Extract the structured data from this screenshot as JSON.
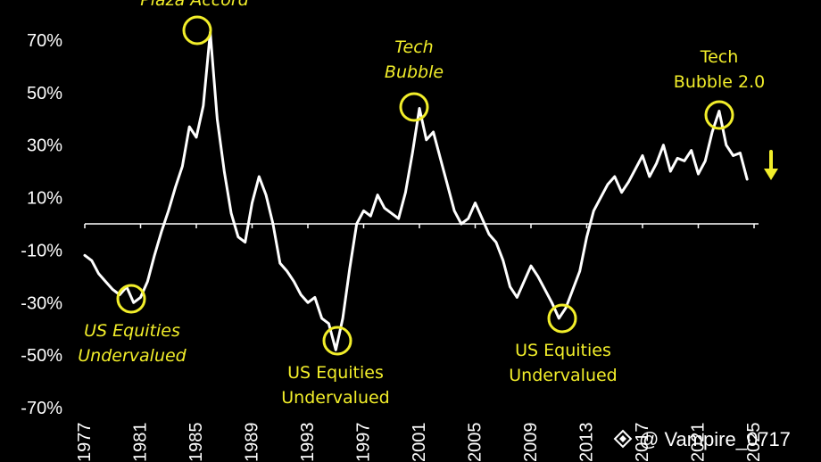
{
  "chart_data": {
    "type": "line",
    "title": "",
    "xlabel": "",
    "ylabel": "",
    "ylim": [
      -70,
      70
    ],
    "xlim": [
      1977,
      2025
    ],
    "y_ticks": [
      "70%",
      "50%",
      "30%",
      "10%",
      "-10%",
      "-30%",
      "-50%",
      "-70%"
    ],
    "y_tick_values": [
      70,
      50,
      30,
      10,
      -10,
      -30,
      -50,
      -70
    ],
    "x_ticks": [
      "1977",
      "1981",
      "1985",
      "1989",
      "1993",
      "1997",
      "2001",
      "2005",
      "2009",
      "2013",
      "2017",
      "2021",
      "2025"
    ],
    "x_tick_values": [
      1977,
      1981,
      1985,
      1989,
      1993,
      1997,
      2001,
      2005,
      2009,
      2013,
      2017,
      2021,
      2025
    ],
    "zero_line": true,
    "grid": false,
    "line_color": "#ffffff",
    "highlight_color": "#f2ee2a",
    "series": [
      {
        "x": [
          1977.0,
          1977.5,
          1978.0,
          1978.5,
          1979.0,
          1979.5,
          1980.0,
          1980.5,
          1981.0,
          1981.5,
          1982.0,
          1982.5,
          1983.0,
          1983.5,
          1984.0,
          1984.5,
          1985.0,
          1985.5,
          1986.0,
          1986.5,
          1987.0,
          1987.5,
          1988.0,
          1988.5,
          1989.0,
          1989.5,
          1990.0,
          1990.5,
          1991.0,
          1991.5,
          1992.0,
          1992.5,
          1993.0,
          1993.5,
          1994.0,
          1994.5,
          1995.0,
          1995.5,
          1996.0,
          1996.5,
          1997.0,
          1997.5,
          1998.0,
          1998.5,
          1999.0,
          1999.5,
          2000.0,
          2000.5,
          2001.0,
          2001.5,
          2002.0,
          2002.5,
          2003.0,
          2003.5,
          2004.0,
          2004.5,
          2005.0,
          2005.5,
          2006.0,
          2006.5,
          2007.0,
          2007.5,
          2008.0,
          2008.5,
          2009.0,
          2009.5,
          2010.0,
          2010.5,
          2011.0,
          2011.5,
          2012.0,
          2012.5,
          2013.0,
          2013.5,
          2014.0,
          2014.5,
          2015.0,
          2015.5,
          2016.0,
          2016.5,
          2017.0,
          2017.5,
          2018.0,
          2018.5,
          2019.0,
          2019.5,
          2020.0,
          2020.5,
          2021.0,
          2021.5,
          2022.0,
          2022.5,
          2023.0,
          2023.5,
          2024.0,
          2024.5
        ],
        "y": [
          -12,
          -14,
          -19,
          -22,
          -25,
          -27,
          -24,
          -30,
          -28,
          -22,
          -12,
          -3,
          5,
          14,
          22,
          37,
          33,
          45,
          73,
          40,
          20,
          4,
          -5,
          -7,
          8,
          18,
          11,
          0,
          -15,
          -18,
          -22,
          -27,
          -30,
          -28,
          -36,
          -38,
          -48,
          -36,
          -17,
          0,
          5,
          3,
          11,
          6,
          4,
          2,
          12,
          27,
          44,
          32,
          35,
          25,
          15,
          5,
          0,
          2,
          8,
          2,
          -4,
          -7,
          -14,
          -24,
          -28,
          -22,
          -16,
          -20,
          -25,
          -30,
          -36,
          -32,
          -25,
          -18,
          -5,
          5,
          10,
          15,
          18,
          12,
          16,
          21,
          26,
          18,
          23,
          30,
          20,
          25,
          24,
          28,
          19,
          24,
          35,
          43,
          30,
          26,
          27,
          17
        ]
      }
    ],
    "annotations": [
      {
        "text": "Plaza Accord",
        "x": 1985,
        "y": 73
      },
      {
        "text": "US Equities Undervalued",
        "x": 1981,
        "y": -28
      },
      {
        "text": "Tech Bubble",
        "x": 2001,
        "y": 44
      },
      {
        "text": "US Equities Undervalued",
        "x": 1995.5,
        "y": -46
      },
      {
        "text": "US Equities Undervalued",
        "x": 2011.5,
        "y": -36
      },
      {
        "text": "Tech Bubble 2.0",
        "x": 2022.5,
        "y": 41
      }
    ]
  },
  "annotation_labels": {
    "plaza": "Plaza Accord",
    "us1_line1": "US Equities",
    "us1_line2": "Undervalued",
    "tech1_line1": "Tech",
    "tech1_line2": "Bubble",
    "us2_line1": "US Equities",
    "us2_line2": "Undervalued",
    "us3_line1": "US Equities",
    "us3_line2": "Undervalued",
    "tech2_line1": "Tech",
    "tech2_line2": "Bubble 2.0"
  },
  "watermark": {
    "text": "@ Vampire_0717",
    "icon": "binance-logo-icon"
  },
  "arrow": {
    "icon": "down-arrow-icon",
    "color": "#f2ee2a"
  }
}
